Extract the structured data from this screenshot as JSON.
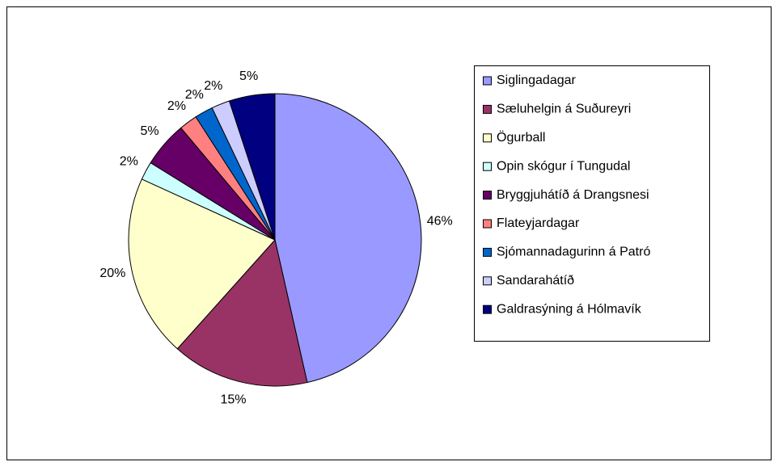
{
  "chart_data": {
    "type": "pie",
    "categories": [
      "Siglingadagar",
      "Sæluhelgin á Suðureyri",
      "Ögurball",
      "Opin skógur í Tungudal",
      "Bryggjuhátíð á Drangsnesi",
      "Flateyjardagar",
      "Sjómannadagurinn á Patró",
      "Sandarahátíð",
      "Galdrasýning á Hólmavík"
    ],
    "values": [
      46,
      15,
      20,
      2,
      5,
      2,
      2,
      2,
      5
    ],
    "value_labels": [
      "46%",
      "15%",
      "20%",
      "2%",
      "5%",
      "2%",
      "2%",
      "2%",
      "5%"
    ],
    "colors": [
      "#9999ff",
      "#993366",
      "#ffffcc",
      "#ccffff",
      "#660066",
      "#ff8080",
      "#0066cc",
      "#ccccff",
      "#000080"
    ],
    "legend": "right"
  }
}
